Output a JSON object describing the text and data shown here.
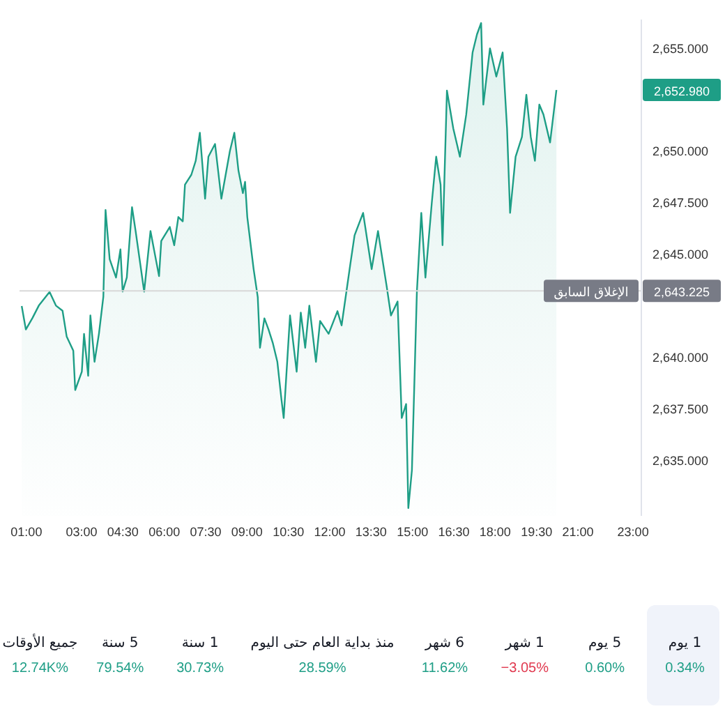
{
  "chart_data": [
    {
      "type": "area",
      "color": "#1e9e86",
      "legend": false,
      "grid": false,
      "marker": "none",
      "x": [
        0.83,
        0.98,
        1.22,
        1.45,
        1.84,
        2.07,
        2.31,
        2.46,
        2.7,
        2.77,
        3.01,
        3.09,
        3.24,
        3.32,
        3.47,
        3.63,
        3.79,
        3.87,
        4.02,
        4.25,
        4.41,
        4.49,
        4.64,
        4.83,
        4.96,
        5.27,
        5.5,
        5.81,
        5.89,
        6.2,
        6.36,
        6.51,
        6.67,
        6.75,
        6.98,
        7.14,
        7.29,
        7.48,
        7.6,
        7.84,
        8.07,
        8.38,
        8.54,
        8.69,
        8.85,
        8.93,
        9.01,
        9.24,
        9.39,
        9.47,
        9.63,
        9.78,
        9.94,
        10.1,
        10.25,
        10.33,
        10.56,
        10.8,
        10.95,
        11.11,
        11.26,
        11.5,
        11.65,
        11.96,
        12.28,
        12.43,
        12.75,
        12.9,
        13.21,
        13.52,
        13.75,
        14.07,
        14.22,
        14.46,
        14.61,
        14.77,
        14.85,
        14.98,
        15.08,
        15.16,
        15.32,
        15.47,
        15.7,
        15.86,
        16.02,
        16.09,
        16.25,
        16.48,
        16.72,
        16.95,
        17.18,
        17.34,
        17.49,
        17.57,
        17.81,
        18.04,
        18.27,
        18.43,
        18.54,
        18.74,
        18.97,
        19.13,
        19.29,
        19.44,
        19.6,
        19.75,
        19.99,
        20.22
      ],
      "values": [
        2642.49,
        2641.35,
        2641.91,
        2642.51,
        2643.17,
        2642.51,
        2642.26,
        2641.01,
        2640.32,
        2638.41,
        2639.3,
        2641.14,
        2639.1,
        2642.03,
        2639.78,
        2641.14,
        2642.94,
        2647.15,
        2644.76,
        2643.87,
        2645.24,
        2643.19,
        2643.87,
        2647.29,
        2646.13,
        2643.19,
        2646.13,
        2643.94,
        2645.65,
        2646.33,
        2645.44,
        2646.81,
        2646.6,
        2648.38,
        2648.86,
        2649.54,
        2650.9,
        2647.7,
        2649.74,
        2650.36,
        2647.7,
        2650.02,
        2650.9,
        2649.06,
        2647.97,
        2648.52,
        2646.81,
        2644.28,
        2642.92,
        2640.46,
        2641.89,
        2641.35,
        2640.67,
        2639.78,
        2637.94,
        2637.05,
        2642.03,
        2639.3,
        2642.17,
        2640.46,
        2642.51,
        2639.78,
        2641.76,
        2641.14,
        2642.24,
        2641.55,
        2644.56,
        2645.92,
        2647.01,
        2644.28,
        2646.13,
        2643.4,
        2642.03,
        2642.71,
        2637.05,
        2637.73,
        2632.68,
        2634.52,
        2639.3,
        2643.19,
        2647.01,
        2643.87,
        2647.49,
        2649.74,
        2648.38,
        2645.44,
        2652.95,
        2651.11,
        2649.74,
        2651.79,
        2654.8,
        2655.68,
        2656.23,
        2652.27,
        2655.0,
        2653.63,
        2654.8,
        2651.11,
        2647.01,
        2649.74,
        2650.7,
        2652.75,
        2650.7,
        2649.54,
        2652.27,
        2651.79,
        2650.43,
        2652.98
      ],
      "xlim": [
        0.75,
        23.3
      ],
      "xticks": [
        {
          "value": 1,
          "label": "01:00"
        },
        {
          "value": 3,
          "label": "03:00"
        },
        {
          "value": 4.5,
          "label": "04:30"
        },
        {
          "value": 6,
          "label": "06:00"
        },
        {
          "value": 7.5,
          "label": "07:30"
        },
        {
          "value": 9,
          "label": "09:00"
        },
        {
          "value": 10.5,
          "label": "10:30"
        },
        {
          "value": 12,
          "label": "12:00"
        },
        {
          "value": 13.5,
          "label": "13:30"
        },
        {
          "value": 15,
          "label": "15:00"
        },
        {
          "value": 16.5,
          "label": "16:30"
        },
        {
          "value": 18,
          "label": "18:00"
        },
        {
          "value": 19.5,
          "label": "19:30"
        },
        {
          "value": 21,
          "label": "21:00"
        },
        {
          "value": 23,
          "label": "23:00"
        }
      ],
      "ylim": [
        2632.3,
        2656.4
      ],
      "yticks": [
        {
          "value": 2635,
          "label": "2,635.000"
        },
        {
          "value": 2637.5,
          "label": "2,637.500"
        },
        {
          "value": 2640,
          "label": "2,640.000"
        },
        {
          "value": 2645,
          "label": "2,645.000"
        },
        {
          "value": 2647.5,
          "label": "2,647.500"
        },
        {
          "value": 2650,
          "label": "2,650.000"
        },
        {
          "value": 2655,
          "label": "2,655.000"
        }
      ],
      "ref_lines": [
        {
          "axis": "y",
          "value": 2643.225,
          "label": "الإغلاق السابق",
          "color": "#d8d8d8",
          "line_style": "solid"
        }
      ],
      "annotations": [
        "2,652.980",
        "2,643.225"
      ]
    },
    {
      "type": "other",
      "categories": [
        "جميع الأوقات",
        "5 سنة",
        "1 سنة",
        "منذ بداية العام حتى اليوم",
        "6 شهر",
        "1 شهر",
        "5 يوم",
        "1 يوم"
      ],
      "values": [
        12740,
        79.54,
        30.73,
        28.59,
        11.62,
        -3.05,
        0.6,
        0.34
      ],
      "value_labels": [
        "12.74K%",
        "79.54%",
        "30.73%",
        "28.59%",
        "11.62%",
        "−3.05%",
        "0.60%",
        "0.34%"
      ]
    }
  ]
}
